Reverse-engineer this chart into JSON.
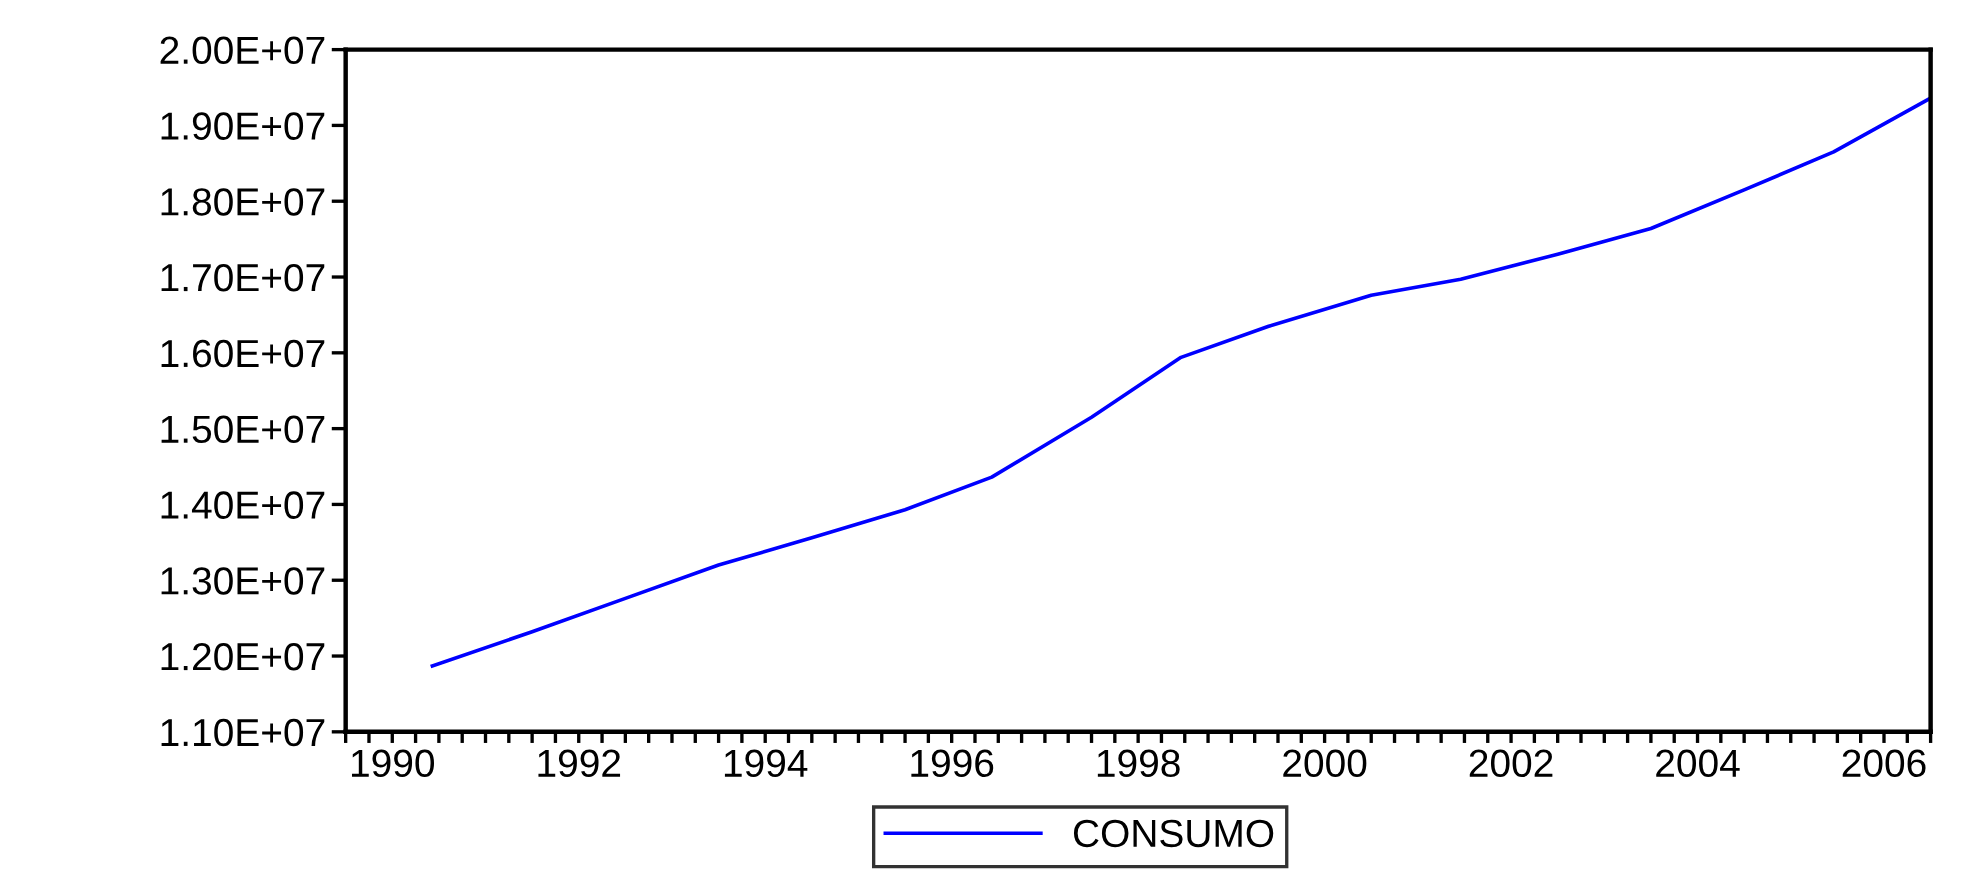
{
  "chart_data": {
    "type": "line",
    "legend": "bottom",
    "grid": false,
    "x": [
      1990.43,
      1991.5,
      1992.5,
      1993.5,
      1994.5,
      1995.5,
      1996.43,
      1997.5,
      1998.46,
      1999.4,
      2000.5,
      2001.46,
      2002.5,
      2003.5,
      2004.5,
      2005.46,
      2006.5
    ],
    "series": [
      {
        "name": "CONSUMO",
        "color": "#0000ff",
        "values": [
          11870000,
          12320000,
          12760000,
          13200000,
          13560000,
          13930000,
          14360000,
          15150000,
          15940000,
          16350000,
          16760000,
          16970000,
          17300000,
          17640000,
          18150000,
          18650000,
          19360000
        ]
      }
    ],
    "xlim": [
      1989.5,
      2006.5
    ],
    "xticks": [
      {
        "value": 1990,
        "label": "1990"
      },
      {
        "value": 1992,
        "label": "1992"
      },
      {
        "value": 1994,
        "label": "1994"
      },
      {
        "value": 1996,
        "label": "1996"
      },
      {
        "value": 1998,
        "label": "1998"
      },
      {
        "value": 2000,
        "label": "2000"
      },
      {
        "value": 2002,
        "label": "2002"
      },
      {
        "value": 2004,
        "label": "2004"
      },
      {
        "value": 2006,
        "label": "2006"
      }
    ],
    "ylim": [
      11000000,
      20000000
    ],
    "yticks": [
      {
        "value": 11000000,
        "label": "1.10E+07"
      },
      {
        "value": 12000000,
        "label": "1.20E+07"
      },
      {
        "value": 13000000,
        "label": "1.30E+07"
      },
      {
        "value": 14000000,
        "label": "1.40E+07"
      },
      {
        "value": 15000000,
        "label": "1.50E+07"
      },
      {
        "value": 16000000,
        "label": "1.60E+07"
      },
      {
        "value": 17000000,
        "label": "1.70E+07"
      },
      {
        "value": 18000000,
        "label": "1.80E+07"
      },
      {
        "value": 19000000,
        "label": "1.90E+07"
      },
      {
        "value": 20000000,
        "label": "2.00E+07"
      }
    ]
  }
}
